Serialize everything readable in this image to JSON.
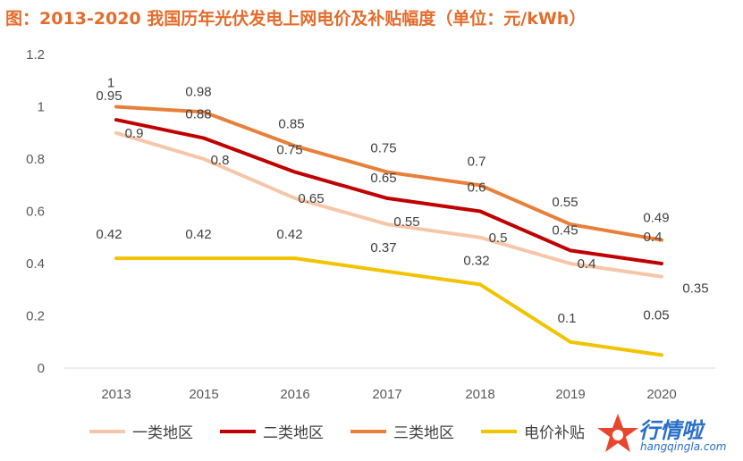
{
  "title": "图：2013-2020 我国历年光伏发电上网电价及补贴幅度（单位：元/kWh）",
  "chart_data": {
    "type": "line",
    "title": "图：2013-2020 我国历年光伏发电上网电价及补贴幅度（单位：元/kWh）",
    "categories": [
      "2013",
      "2015",
      "2016",
      "2017",
      "2018",
      "2019",
      "2020"
    ],
    "ylim": [
      0,
      1.2
    ],
    "yticks": [
      "0",
      "0.2",
      "0.4",
      "0.6",
      "0.8",
      "1",
      "1.2"
    ],
    "grid": false,
    "legend_position": "bottom",
    "series": [
      {
        "name": "一类地区",
        "color": "#F7C6A9",
        "values": [
          0.9,
          0.8,
          0.65,
          0.55,
          0.5,
          0.4,
          0.35
        ],
        "labels": [
          "0.9",
          "0.8",
          "0.65",
          "0.55",
          "0.5",
          "0.4",
          "0.35"
        ]
      },
      {
        "name": "二类地区",
        "color": "#C00000",
        "values": [
          0.95,
          0.88,
          0.75,
          0.65,
          0.6,
          0.45,
          0.4
        ],
        "labels": [
          "0.95",
          "0.88",
          "0.75",
          "0.65",
          "0.6",
          "0.45",
          "0.4"
        ]
      },
      {
        "name": "三类地区",
        "color": "#E8803A",
        "values": [
          1,
          0.98,
          0.85,
          0.75,
          0.7,
          0.55,
          0.49
        ],
        "labels": [
          "1",
          "0.98",
          "0.85",
          "0.75",
          "0.7",
          "0.55",
          "0.49"
        ]
      },
      {
        "name": "电价补贴",
        "color": "#F2C300",
        "values": [
          0.42,
          0.42,
          0.42,
          0.37,
          0.32,
          0.1,
          0.05
        ],
        "labels": [
          "0.42",
          "0.42",
          "0.42",
          "0.37",
          "0.32",
          "0.1",
          "0.05"
        ]
      }
    ]
  },
  "watermark": {
    "brand": "行情啦",
    "url": "hangqingla.com"
  }
}
